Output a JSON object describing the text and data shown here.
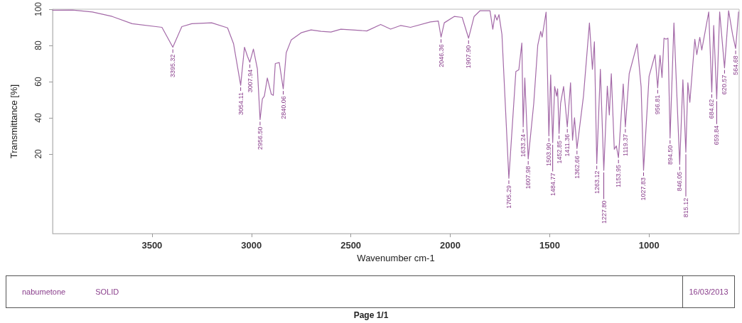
{
  "chart_data": {
    "type": "line",
    "xlabel": "Wavenumber cm-1",
    "ylabel": "Transmittance [%]",
    "x": [
      4000,
      3900,
      3800,
      3700,
      3600,
      3450,
      3395.32,
      3350,
      3300,
      3200,
      3120,
      3090,
      3054.11,
      3035,
      3020,
      3007.94,
      2990,
      2970,
      2956.5,
      2945,
      2935,
      2920,
      2900,
      2890,
      2880,
      2860,
      2840.06,
      2825,
      2800,
      2750,
      2700,
      2650,
      2600,
      2550,
      2480,
      2420,
      2350,
      2300,
      2250,
      2200,
      2100,
      2060,
      2046.36,
      2030,
      1980,
      1940,
      1907.9,
      1880,
      1850,
      1800,
      1786,
      1775,
      1765,
      1755,
      1740,
      1705.29,
      1670,
      1655,
      1640,
      1633.24,
      1625,
      1607.98,
      1580,
      1560,
      1545,
      1538,
      1518,
      1503.9,
      1495,
      1484.77,
      1475,
      1465,
      1460,
      1452.85,
      1445,
      1430,
      1411.36,
      1395,
      1385,
      1375,
      1362.66,
      1330,
      1300,
      1285,
      1275,
      1263.12,
      1245,
      1227.8,
      1210,
      1200,
      1190,
      1175,
      1165,
      1153.95,
      1130,
      1119.37,
      1100,
      1060,
      1040,
      1027.83,
      1000,
      970,
      956.81,
      945,
      935,
      925,
      915,
      905,
      894.5,
      875,
      846.05,
      830,
      815.12,
      805,
      795,
      770,
      760,
      745,
      735,
      700,
      684.62,
      675,
      659.84,
      645,
      620.57,
      600,
      580,
      564.68,
      550
    ],
    "series": [
      {
        "color": "#a46aa8",
        "values": [
          99.5,
          99.6,
          98.5,
          96,
          92,
          90,
          79,
          90.4,
          92,
          92.5,
          89.7,
          81,
          58,
          79,
          74,
          70.7,
          78,
          67,
          39,
          50.4,
          52,
          62,
          53,
          52.4,
          70,
          70.5,
          56,
          76,
          83,
          87,
          88.6,
          87.8,
          87.4,
          89,
          88.5,
          88,
          91.6,
          89,
          91,
          90,
          93,
          93.5,
          84.6,
          92.5,
          96,
          95.5,
          84,
          96,
          99.2,
          99.2,
          89,
          97,
          94,
          97,
          86,
          6.6,
          65.6,
          66.6,
          81.3,
          35,
          62,
          17.3,
          48,
          80,
          87.8,
          84.6,
          98.4,
          30,
          63.7,
          26.3,
          57.3,
          52,
          56,
          31.4,
          48,
          57.3,
          35,
          59.4,
          27.6,
          40,
          23,
          52,
          92.4,
          66.8,
          82,
          14.7,
          66.8,
          11,
          57.5,
          41.6,
          64.4,
          22.6,
          24.5,
          18,
          58.7,
          35,
          64.4,
          80.8,
          57,
          11,
          63,
          74.9,
          56.6,
          74.5,
          62.3,
          84,
          83.4,
          84,
          28.8,
          92.4,
          14.2,
          61,
          21,
          59.4,
          48.6,
          83.4,
          74.9,
          84.5,
          77.5,
          98.5,
          54.2,
          91,
          50.4,
          98.5,
          67.6,
          99.2,
          86,
          78.3,
          98.5
        ]
      }
    ],
    "xlim": [
      4000,
      547
    ],
    "xticks": [
      3500,
      3000,
      2500,
      2000,
      1500,
      1000
    ],
    "ylim": [
      -24,
      100
    ],
    "yticks": [
      20,
      40,
      60,
      80,
      100
    ],
    "grid": false,
    "marker": "none",
    "line_style": "solid",
    "annotations": [
      {
        "text": "3395.32",
        "x": 3395.32,
        "y": 79
      },
      {
        "text": "3054.11",
        "x": 3054.11,
        "y": 58
      },
      {
        "text": "3007.94",
        "x": 3007.94,
        "y": 70.7
      },
      {
        "text": "2956.50",
        "x": 2956.5,
        "y": 39
      },
      {
        "text": "2840.06",
        "x": 2840.06,
        "y": 56
      },
      {
        "text": "2046.36",
        "x": 2046.36,
        "y": 84.6
      },
      {
        "text": "1907.90",
        "x": 1907.9,
        "y": 84
      },
      {
        "text": "1705.29",
        "x": 1705.29,
        "y": 6.6
      },
      {
        "text": "1633.24",
        "x": 1633.24,
        "y": 35
      },
      {
        "text": "1607.98",
        "x": 1607.98,
        "y": 17.3
      },
      {
        "text": "1503.90",
        "x": 1503.9,
        "y": 30
      },
      {
        "text": "1484.77",
        "x": 1484.77,
        "y": 26.3
      },
      {
        "text": "1452.85",
        "x": 1452.85,
        "y": 31.4
      },
      {
        "text": "1411.36",
        "x": 1411.36,
        "y": 35
      },
      {
        "text": "1362.66",
        "x": 1362.66,
        "y": 23
      },
      {
        "text": "1263.12",
        "x": 1263.12,
        "y": 14.7
      },
      {
        "text": "1227.80",
        "x": 1227.8,
        "y": 11
      },
      {
        "text": "1153.95",
        "x": 1153.95,
        "y": 18
      },
      {
        "text": "1119.37",
        "x": 1119.37,
        "y": 35
      },
      {
        "text": "1027.83",
        "x": 1027.83,
        "y": 11
      },
      {
        "text": "956.81",
        "x": 956.81,
        "y": 56.6
      },
      {
        "text": "894.50",
        "x": 894.5,
        "y": 28.8
      },
      {
        "text": "846.05",
        "x": 846.05,
        "y": 14.2
      },
      {
        "text": "815.12",
        "x": 815.12,
        "y": 21
      },
      {
        "text": "684.62",
        "x": 684.62,
        "y": 54.2
      },
      {
        "text": "659.84",
        "x": 659.84,
        "y": 50.4
      },
      {
        "text": "620.57",
        "x": 620.57,
        "y": 67.6
      },
      {
        "text": "564.68",
        "x": 564.68,
        "y": 78.3
      },
      "nabumetone",
      "SOLID",
      "16/03/2013",
      "Page 1/1"
    ]
  }
}
